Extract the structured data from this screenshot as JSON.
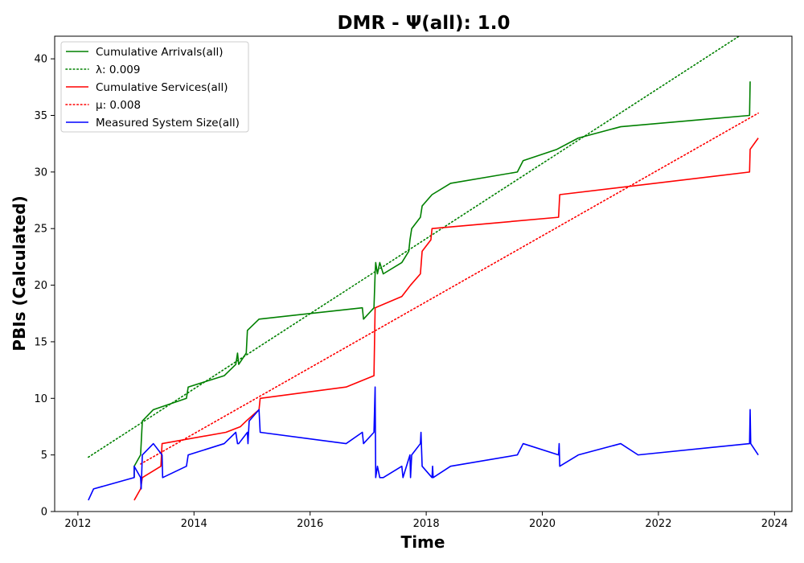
{
  "chart_data": {
    "type": "line",
    "title": "DMR -  Ψ(all): 1.0",
    "xlabel": "Time",
    "ylabel": "PBIs (Calculated)",
    "xlim": [
      2011.6,
      2024.3
    ],
    "ylim": [
      0,
      42
    ],
    "xticks": [
      2012,
      2014,
      2016,
      2018,
      2020,
      2022,
      2024
    ],
    "yticks": [
      0,
      5,
      10,
      15,
      20,
      25,
      30,
      35,
      40
    ],
    "grid": false,
    "legend_position": "top-left",
    "series": [
      {
        "name": "Cumulative Arrivals(all)",
        "color": "#008000",
        "style": "solid",
        "points": [
          [
            2012.97,
            3
          ],
          [
            2012.97,
            4
          ],
          [
            2013.08,
            5
          ],
          [
            2013.11,
            8
          ],
          [
            2013.3,
            9
          ],
          [
            2013.87,
            10
          ],
          [
            2013.9,
            11
          ],
          [
            2014.52,
            12
          ],
          [
            2014.72,
            13
          ],
          [
            2014.75,
            14
          ],
          [
            2014.77,
            13
          ],
          [
            2014.9,
            14
          ],
          [
            2014.92,
            16
          ],
          [
            2015.12,
            17
          ],
          [
            2016.9,
            18
          ],
          [
            2016.92,
            17
          ],
          [
            2017.1,
            18
          ],
          [
            2017.12,
            21
          ],
          [
            2017.13,
            22
          ],
          [
            2017.16,
            21
          ],
          [
            2017.2,
            22
          ],
          [
            2017.26,
            21
          ],
          [
            2017.58,
            22
          ],
          [
            2017.7,
            23
          ],
          [
            2017.72,
            24
          ],
          [
            2017.75,
            25
          ],
          [
            2017.9,
            26
          ],
          [
            2017.93,
            27
          ],
          [
            2018.1,
            28
          ],
          [
            2018.42,
            29
          ],
          [
            2019.57,
            30
          ],
          [
            2019.67,
            31
          ],
          [
            2020.25,
            32
          ],
          [
            2020.62,
            33
          ],
          [
            2021.35,
            34
          ],
          [
            2023.57,
            35
          ],
          [
            2023.58,
            38
          ]
        ]
      },
      {
        "name": "λ: 0.009",
        "color": "#008000",
        "style": "dotted",
        "points": [
          [
            2012.18,
            4.8
          ],
          [
            2023.6,
            42.7
          ]
        ]
      },
      {
        "name": "Cumulative Services(all)",
        "color": "#ff0000",
        "style": "solid",
        "points": [
          [
            2012.97,
            1
          ],
          [
            2013.08,
            2
          ],
          [
            2013.11,
            3
          ],
          [
            2013.43,
            4
          ],
          [
            2013.45,
            6
          ],
          [
            2014.55,
            7
          ],
          [
            2014.8,
            7.5
          ],
          [
            2014.9,
            8
          ],
          [
            2015.12,
            9
          ],
          [
            2015.14,
            10
          ],
          [
            2016.62,
            11
          ],
          [
            2017.1,
            12
          ],
          [
            2017.12,
            18
          ],
          [
            2017.58,
            19
          ],
          [
            2017.73,
            20
          ],
          [
            2017.9,
            21
          ],
          [
            2017.93,
            23
          ],
          [
            2018.08,
            24
          ],
          [
            2018.1,
            25
          ],
          [
            2020.28,
            26
          ],
          [
            2020.3,
            28
          ],
          [
            2023.57,
            30
          ],
          [
            2023.58,
            32
          ],
          [
            2023.72,
            33
          ]
        ]
      },
      {
        "name": "μ: 0.008",
        "color": "#ff0000",
        "style": "dotted",
        "points": [
          [
            2013.08,
            4.2
          ],
          [
            2023.72,
            35.2
          ]
        ]
      },
      {
        "name": "Measured System Size(all)",
        "color": "#0000ff",
        "style": "solid",
        "points": [
          [
            2012.18,
            1
          ],
          [
            2012.27,
            2
          ],
          [
            2012.97,
            3
          ],
          [
            2012.97,
            4
          ],
          [
            2013.08,
            3
          ],
          [
            2013.09,
            2
          ],
          [
            2013.11,
            5
          ],
          [
            2013.3,
            6
          ],
          [
            2013.45,
            5
          ],
          [
            2013.46,
            3
          ],
          [
            2013.87,
            4
          ],
          [
            2013.9,
            5
          ],
          [
            2014.52,
            6
          ],
          [
            2014.72,
            7
          ],
          [
            2014.75,
            6
          ],
          [
            2014.77,
            6
          ],
          [
            2014.92,
            7
          ],
          [
            2014.93,
            6
          ],
          [
            2014.95,
            8
          ],
          [
            2015.12,
            9
          ],
          [
            2015.14,
            7
          ],
          [
            2016.62,
            6
          ],
          [
            2016.9,
            7
          ],
          [
            2016.92,
            6
          ],
          [
            2017.1,
            7
          ],
          [
            2017.12,
            11
          ],
          [
            2017.13,
            3
          ],
          [
            2017.16,
            4
          ],
          [
            2017.2,
            3
          ],
          [
            2017.26,
            3
          ],
          [
            2017.58,
            4
          ],
          [
            2017.6,
            3
          ],
          [
            2017.72,
            5
          ],
          [
            2017.73,
            3
          ],
          [
            2017.75,
            5
          ],
          [
            2017.9,
            6
          ],
          [
            2017.91,
            7
          ],
          [
            2017.93,
            4
          ],
          [
            2018.1,
            3
          ],
          [
            2018.11,
            4
          ],
          [
            2018.12,
            3
          ],
          [
            2018.42,
            4
          ],
          [
            2019.57,
            5
          ],
          [
            2019.67,
            6
          ],
          [
            2020.28,
            5
          ],
          [
            2020.29,
            6
          ],
          [
            2020.3,
            4
          ],
          [
            2020.62,
            5
          ],
          [
            2021.35,
            6
          ],
          [
            2021.65,
            5
          ],
          [
            2023.57,
            6
          ],
          [
            2023.58,
            9
          ],
          [
            2023.59,
            6
          ],
          [
            2023.72,
            5
          ]
        ]
      }
    ]
  }
}
